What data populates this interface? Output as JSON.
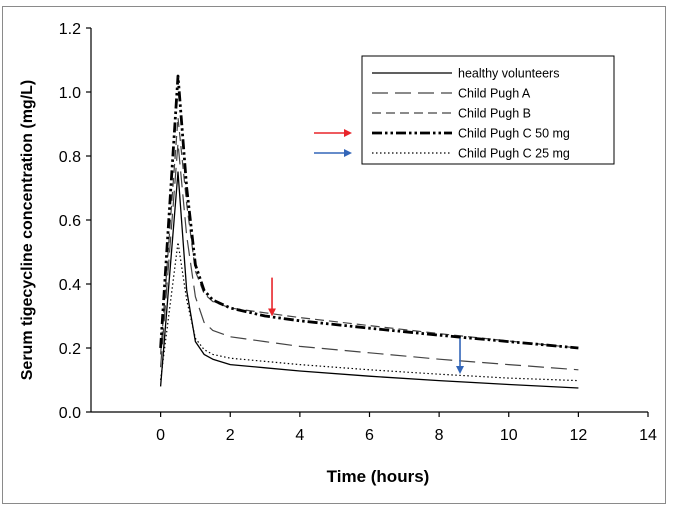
{
  "chart_data": {
    "type": "line",
    "title": "",
    "xlabel": "Time (hours)",
    "ylabel": "Serum tigecycline concentration (mg/L)",
    "xlim": [
      -2,
      14
    ],
    "ylim": [
      0,
      1.2
    ],
    "xticks": [
      0,
      2,
      4,
      6,
      8,
      10,
      12,
      14
    ],
    "yticks": [
      0.0,
      0.2,
      0.4,
      0.6,
      0.8,
      1.0,
      1.2
    ],
    "xtick_labels": [
      "0",
      "2",
      "4",
      "6",
      "8",
      "10",
      "12",
      "14"
    ],
    "ytick_labels": [
      "0.0",
      "0.2",
      "0.4",
      "0.6",
      "0.8",
      "1.0",
      "1.2"
    ],
    "grid": false,
    "legend_position": "top-right",
    "series": [
      {
        "name": "healthy volunteers",
        "style": "solid",
        "color": "#000000",
        "x": [
          0,
          0.5,
          0.75,
          1.0,
          1.25,
          1.5,
          2,
          3,
          4,
          6,
          8,
          10,
          12
        ],
        "y": [
          0.08,
          0.75,
          0.38,
          0.22,
          0.18,
          0.165,
          0.148,
          0.138,
          0.128,
          0.112,
          0.098,
          0.086,
          0.075
        ]
      },
      {
        "name": "Child Pugh A",
        "style": "long-dash",
        "color": "#444444",
        "x": [
          0,
          0.5,
          0.75,
          1.0,
          1.25,
          1.5,
          2,
          3,
          4,
          6,
          8,
          10,
          12
        ],
        "y": [
          0.14,
          0.84,
          0.55,
          0.36,
          0.28,
          0.255,
          0.235,
          0.22,
          0.205,
          0.185,
          0.165,
          0.148,
          0.132
        ]
      },
      {
        "name": "Child Pugh B",
        "style": "dash",
        "color": "#444444",
        "x": [
          0,
          0.5,
          0.75,
          1.0,
          1.25,
          1.5,
          2,
          3,
          4,
          6,
          8,
          10,
          12
        ],
        "y": [
          0.18,
          0.92,
          0.65,
          0.44,
          0.37,
          0.345,
          0.325,
          0.31,
          0.295,
          0.27,
          0.245,
          0.222,
          0.2
        ]
      },
      {
        "name": "Child Pugh C 50 mg",
        "style": "dash-dot-dot",
        "color": "#000000",
        "x": [
          0,
          0.5,
          0.75,
          1.0,
          1.25,
          1.5,
          2,
          3,
          4,
          6,
          8,
          10,
          12
        ],
        "y": [
          0.2,
          1.05,
          0.7,
          0.46,
          0.38,
          0.35,
          0.325,
          0.3,
          0.285,
          0.262,
          0.24,
          0.22,
          0.2
        ]
      },
      {
        "name": "Child Pugh C 25 mg",
        "style": "dotted",
        "color": "#000000",
        "x": [
          0,
          0.5,
          0.75,
          1.0,
          1.25,
          1.5,
          2,
          3,
          4,
          6,
          8,
          10,
          12
        ],
        "y": [
          0.1,
          0.53,
          0.35,
          0.23,
          0.195,
          0.18,
          0.168,
          0.158,
          0.148,
          0.132,
          0.118,
          0.106,
          0.098
        ]
      }
    ],
    "annotations": [
      {
        "type": "arrow-right",
        "color": "#e8252a",
        "points_to": "Child Pugh C 50 mg",
        "location": "legend"
      },
      {
        "type": "arrow-right",
        "color": "#3366b8",
        "points_to": "Child Pugh C 25 mg",
        "location": "legend"
      },
      {
        "type": "arrow-down",
        "color": "#e8252a",
        "x": 3.2,
        "y_from": 0.42,
        "y_to": 0.305
      },
      {
        "type": "arrow-down",
        "color": "#3366b8",
        "x": 8.6,
        "y_from": 0.23,
        "y_to": 0.125
      }
    ]
  }
}
